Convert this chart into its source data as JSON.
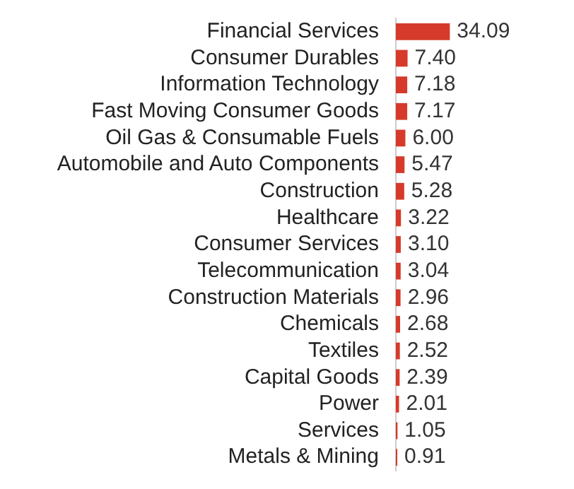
{
  "chart_data": {
    "type": "bar",
    "orientation": "horizontal",
    "categories": [
      "Financial Services",
      "Consumer Durables",
      "Information Technology",
      "Fast Moving Consumer Goods",
      "Oil Gas & Consumable Fuels",
      "Automobile and Auto Components",
      "Construction",
      "Healthcare",
      "Consumer Services",
      "Telecommunication",
      "Construction Materials",
      "Chemicals",
      "Textiles",
      "Capital Goods",
      "Power",
      "Services",
      "Metals & Mining"
    ],
    "values": [
      34.09,
      7.4,
      7.18,
      7.17,
      6.0,
      5.47,
      5.28,
      3.22,
      3.1,
      3.04,
      2.96,
      2.68,
      2.52,
      2.39,
      2.01,
      1.05,
      0.91
    ],
    "value_labels": [
      "34.09",
      "7.40",
      "7.18",
      "7.17",
      "6.00",
      "5.47",
      "5.28",
      "3.22",
      "3.10",
      "3.04",
      "2.96",
      "2.68",
      "2.52",
      "2.39",
      "2.01",
      "1.05",
      "0.91"
    ],
    "color": "#d63a2a",
    "grid": false,
    "legend": false,
    "tick_labels": "y"
  }
}
